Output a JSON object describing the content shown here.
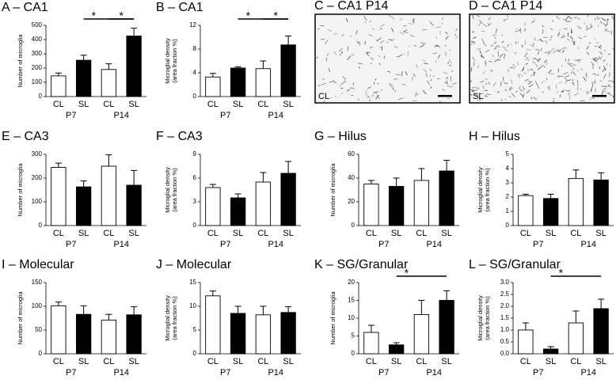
{
  "chart_data": [
    {
      "type": "bar",
      "title": "A – CA1",
      "ylabel": [
        "Number of microglia"
      ],
      "categories": [
        "CL",
        "SL",
        "CL",
        "SL"
      ],
      "groups": [
        "P7",
        "P14"
      ],
      "values": [
        145,
        255,
        190,
        425
      ],
      "errors": [
        20,
        35,
        40,
        55
      ],
      "colors": [
        "#ffffff",
        "#000000",
        "#ffffff",
        "#000000"
      ],
      "ylim": [
        0,
        500
      ],
      "yticks": [
        0,
        100,
        200,
        300,
        400,
        500
      ],
      "comparisons": [
        {
          "categories": [
            1,
            3
          ],
          "label": "*"
        },
        {
          "categories": [
            2,
            3
          ],
          "label": "*"
        }
      ]
    },
    {
      "type": "bar",
      "title": "B – CA1",
      "ylabel": [
        "Microglial density",
        "(area fraction %)"
      ],
      "categories": [
        "CL",
        "SL",
        "CL",
        "SL"
      ],
      "groups": [
        "P7",
        "P14"
      ],
      "values": [
        3.3,
        4.8,
        4.7,
        8.7
      ],
      "errors": [
        0.6,
        0.2,
        1.3,
        1.5
      ],
      "colors": [
        "#ffffff",
        "#000000",
        "#ffffff",
        "#000000"
      ],
      "ylim": [
        0,
        12
      ],
      "yticks": [
        0,
        4,
        8,
        12
      ],
      "comparisons": [
        {
          "categories": [
            1,
            3
          ],
          "label": "*"
        },
        {
          "categories": [
            2,
            3
          ],
          "label": "*"
        }
      ]
    },
    {
      "type": "micrograph",
      "title": "C – CA1 P14",
      "label": "CL",
      "density": 0.5
    },
    {
      "type": "micrograph",
      "title": "D – CA1 P14",
      "label": "SL",
      "density": 1
    },
    {
      "type": "bar",
      "title": "E – CA3",
      "ylabel": [
        "Number of microglia"
      ],
      "categories": [
        "CL",
        "SL",
        "CL",
        "SL"
      ],
      "groups": [
        "P7",
        "P14"
      ],
      "values": [
        245,
        163,
        250,
        170
      ],
      "errors": [
        18,
        25,
        48,
        62
      ],
      "colors": [
        "#ffffff",
        "#000000",
        "#ffffff",
        "#000000"
      ],
      "ylim": [
        0,
        300
      ],
      "yticks": [
        0,
        100,
        200,
        300
      ]
    },
    {
      "type": "bar",
      "title": "F – CA3",
      "ylabel": [
        "Microglial density",
        "(area fraction %)"
      ],
      "categories": [
        "CL",
        "SL",
        "CL",
        "SL"
      ],
      "groups": [
        "P7",
        "P14"
      ],
      "values": [
        4.8,
        3.5,
        5.5,
        6.6
      ],
      "errors": [
        0.4,
        0.5,
        1.2,
        1.5
      ],
      "colors": [
        "#ffffff",
        "#000000",
        "#ffffff",
        "#000000"
      ],
      "ylim": [
        0,
        9
      ],
      "yticks": [
        0,
        3,
        6,
        9
      ]
    },
    {
      "type": "bar",
      "title": "G – Hilus",
      "ylabel": [
        "Number of microglia"
      ],
      "categories": [
        "CL",
        "SL",
        "CL",
        "SL"
      ],
      "groups": [
        "P7",
        "P14"
      ],
      "values": [
        35,
        33,
        38,
        46
      ],
      "errors": [
        3,
        7,
        10,
        9
      ],
      "colors": [
        "#ffffff",
        "#000000",
        "#ffffff",
        "#000000"
      ],
      "ylim": [
        0,
        60
      ],
      "yticks": [
        0,
        20,
        40,
        60
      ]
    },
    {
      "type": "bar",
      "title": "H – Hilus",
      "ylabel": [
        "Microglial density",
        "(area fraction %)"
      ],
      "categories": [
        "CL",
        "SL",
        "CL",
        "SL"
      ],
      "groups": [
        "P7",
        "P14"
      ],
      "values": [
        2.1,
        1.9,
        3.3,
        3.2
      ],
      "errors": [
        0.1,
        0.3,
        0.6,
        0.5
      ],
      "colors": [
        "#ffffff",
        "#000000",
        "#ffffff",
        "#000000"
      ],
      "ylim": [
        0,
        5
      ],
      "yticks": [
        0,
        1,
        2,
        3,
        4,
        5
      ]
    },
    {
      "type": "bar",
      "title": "I – Molecular",
      "ylabel": [
        "Number of microglia"
      ],
      "categories": [
        "CL",
        "SL",
        "CL",
        "SL"
      ],
      "groups": [
        "P7",
        "P14"
      ],
      "values": [
        101,
        83,
        71,
        82
      ],
      "errors": [
        8,
        18,
        12,
        17
      ],
      "colors": [
        "#ffffff",
        "#000000",
        "#ffffff",
        "#000000"
      ],
      "ylim": [
        0,
        150
      ],
      "yticks": [
        0,
        50,
        100,
        150
      ]
    },
    {
      "type": "bar",
      "title": "J – Molecular",
      "ylabel": [
        "Microglial density",
        "(area fraction %)"
      ],
      "categories": [
        "CL",
        "SL",
        "CL",
        "SL"
      ],
      "groups": [
        "P7",
        "P14"
      ],
      "values": [
        12.2,
        8.5,
        8.2,
        8.7
      ],
      "errors": [
        1,
        1.5,
        1.8,
        1.2
      ],
      "colors": [
        "#ffffff",
        "#000000",
        "#ffffff",
        "#000000"
      ],
      "ylim": [
        0,
        15
      ],
      "yticks": [
        0,
        5,
        10,
        15
      ]
    },
    {
      "type": "bar",
      "title": "K – SG/Granular",
      "ylabel": [
        "Number of microglia"
      ],
      "categories": [
        "CL",
        "SL",
        "CL",
        "SL"
      ],
      "groups": [
        "P7",
        "P14"
      ],
      "values": [
        6,
        2.5,
        11,
        15
      ],
      "errors": [
        2,
        0.6,
        4,
        2.7
      ],
      "colors": [
        "#ffffff",
        "#000000",
        "#ffffff",
        "#000000"
      ],
      "ylim": [
        0,
        20
      ],
      "yticks": [
        0,
        5,
        10,
        15,
        20
      ],
      "comparisons": [
        {
          "categories": [
            1,
            3
          ],
          "label": "*"
        }
      ]
    },
    {
      "type": "bar",
      "title": "L – SG/Granular",
      "ylabel": [
        "Microglial density",
        "(area fraction %)"
      ],
      "categories": [
        "CL",
        "SL",
        "CL",
        "SL"
      ],
      "groups": [
        "P7",
        "P14"
      ],
      "values": [
        1.0,
        0.2,
        1.3,
        1.9
      ],
      "errors": [
        0.3,
        0.1,
        0.5,
        0.4
      ],
      "colors": [
        "#ffffff",
        "#000000",
        "#ffffff",
        "#000000"
      ],
      "ylim": [
        0,
        3
      ],
      "yticks": [
        {
          "value": 0,
          "label": "0.0"
        },
        {
          "value": 0.5,
          "label": "0.5"
        },
        {
          "value": 1,
          "label": "1.0"
        },
        {
          "value": 1.5,
          "label": "1.5"
        },
        {
          "value": 2,
          "label": "2.0"
        },
        {
          "value": 2.5,
          "label": "2.5"
        },
        {
          "value": 3,
          "label": "3.0"
        }
      ],
      "comparisons": [
        {
          "categories": [
            1,
            3
          ],
          "label": "*"
        }
      ]
    }
  ]
}
